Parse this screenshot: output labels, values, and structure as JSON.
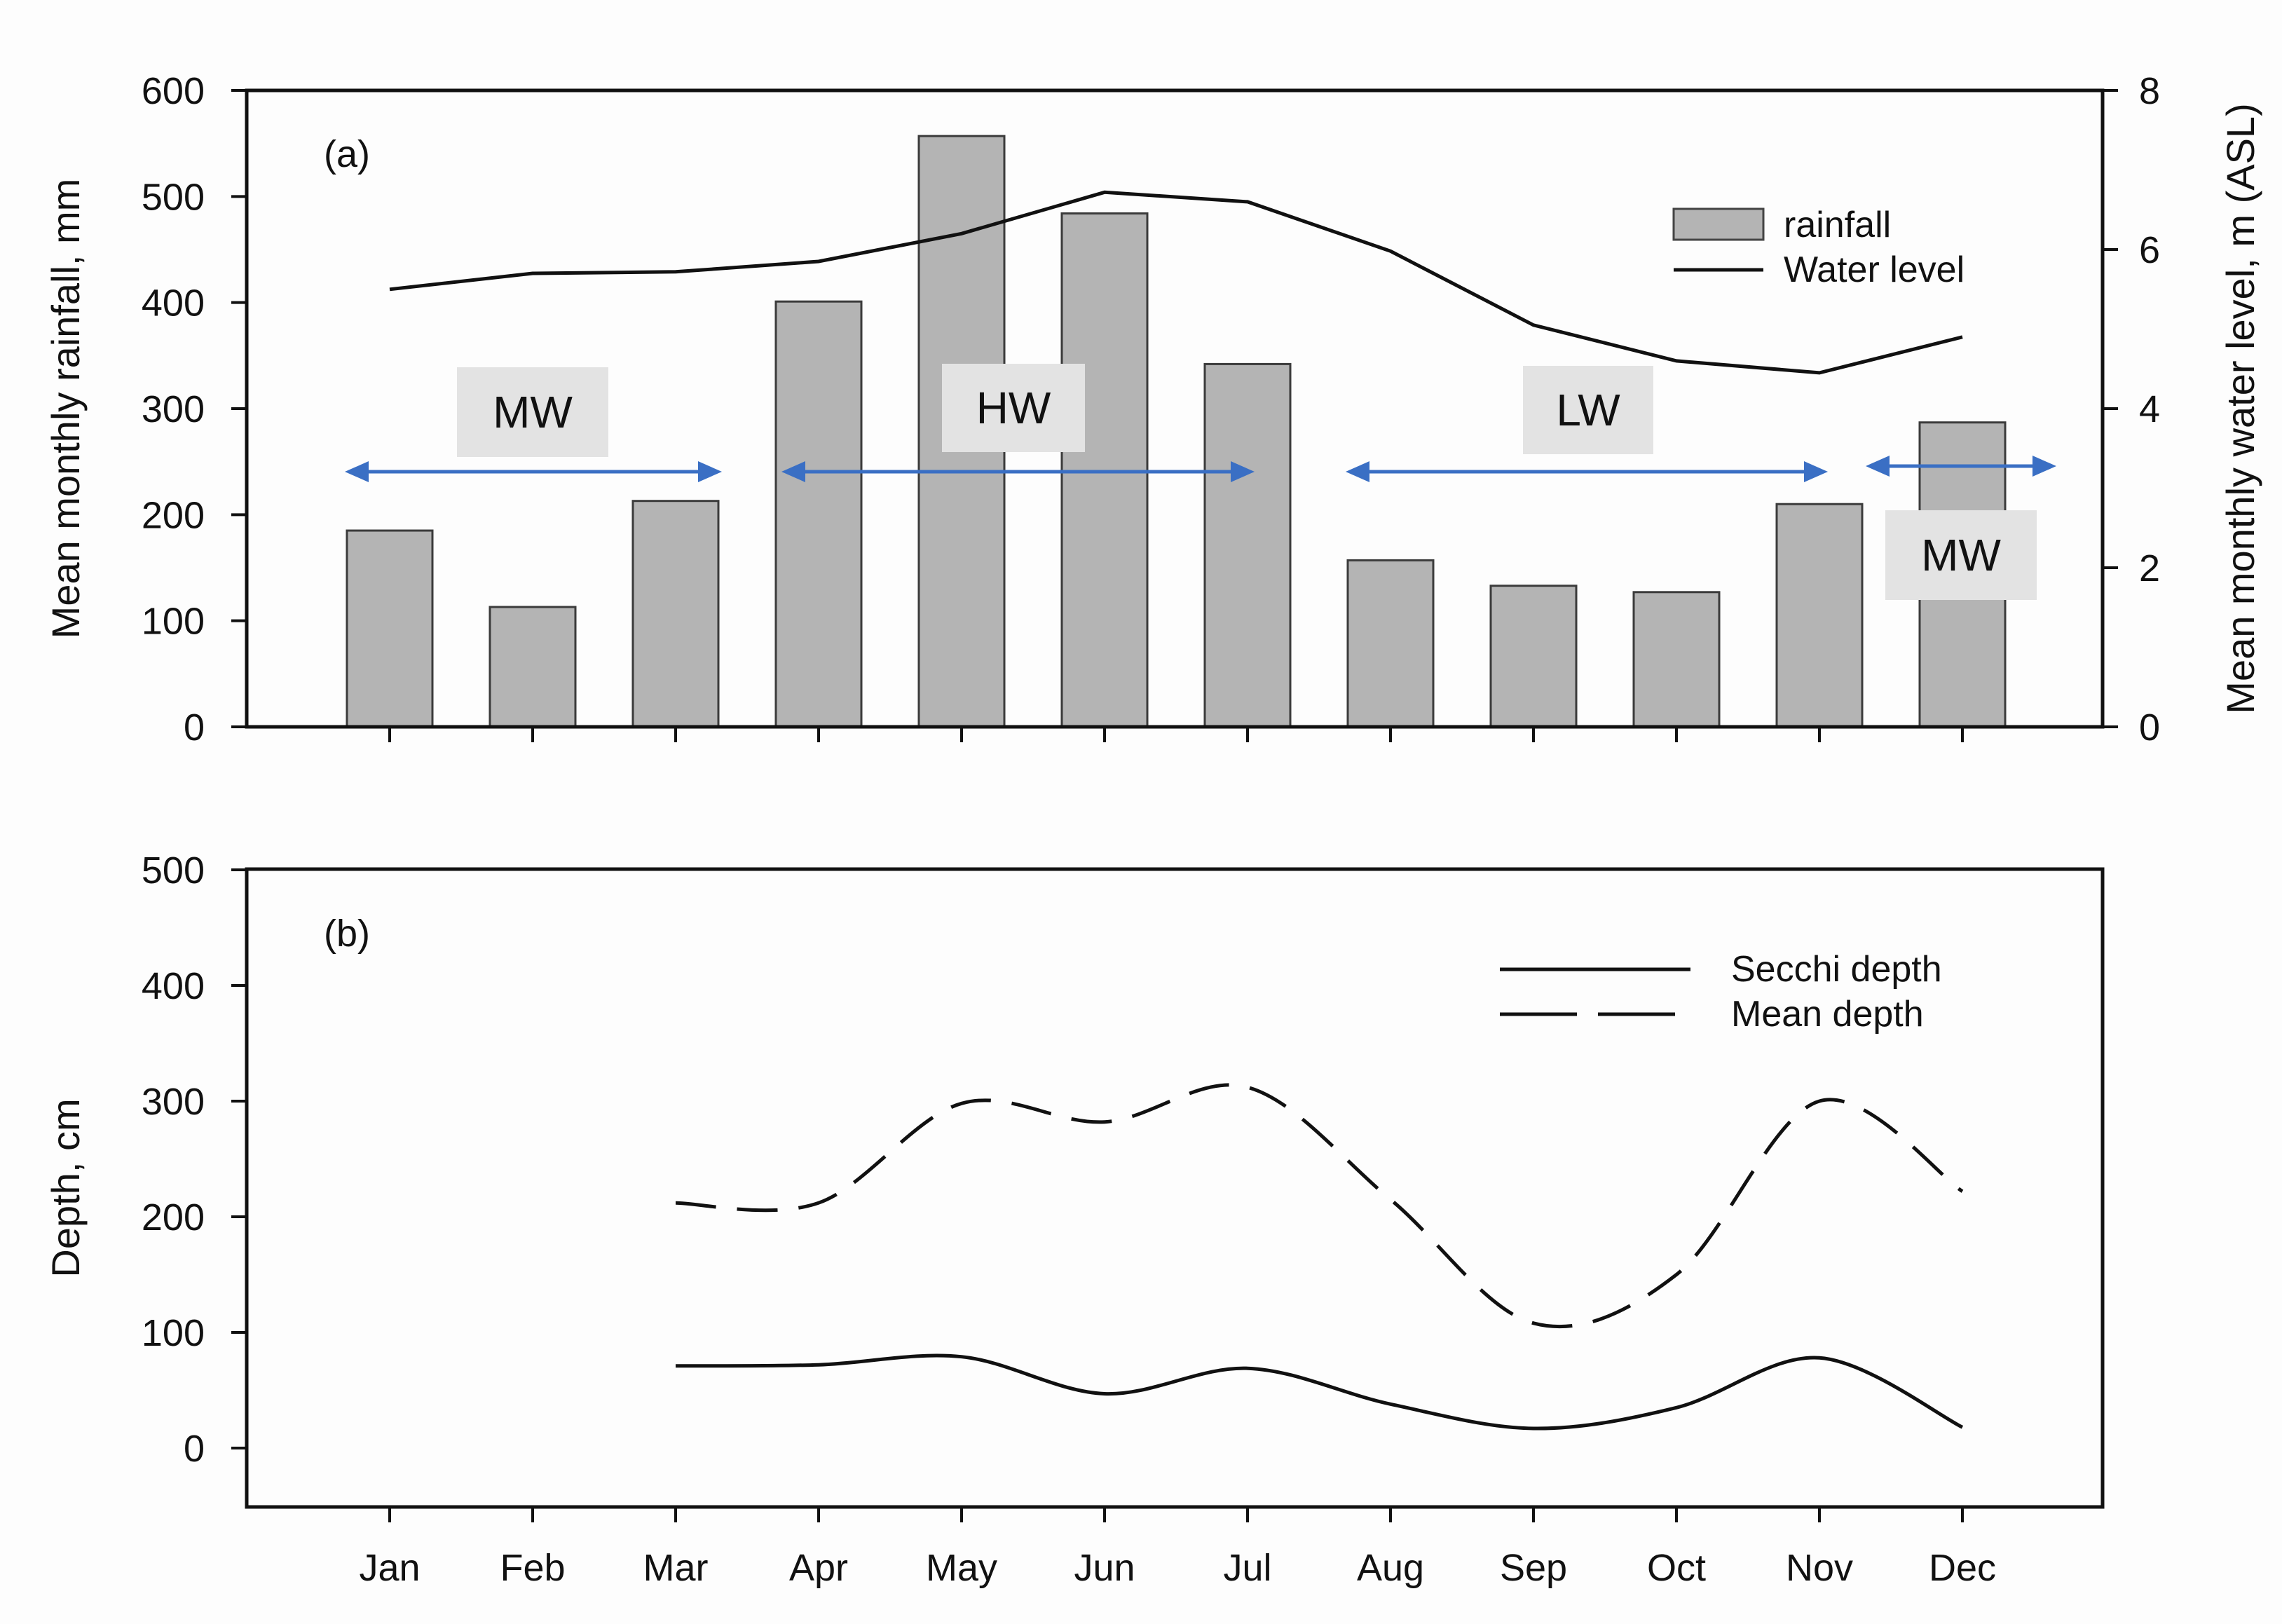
{
  "months": [
    "Jan",
    "Feb",
    "Mar",
    "Apr",
    "May",
    "Jun",
    "Jul",
    "Aug",
    "Sep",
    "Oct",
    "Nov",
    "Dec"
  ],
  "colors": {
    "bar": "#b4b4b4",
    "arrow": "#3a6fc4",
    "label_box": "#e3e3e3",
    "line": "#111111"
  },
  "chart_data": [
    {
      "type": "bar",
      "panel_label": "(a)",
      "ylabel": "Mean monthly rainfall, mm",
      "ylabel_right": "Mean monthly water level, m (ASL)",
      "ylim": [
        0,
        600
      ],
      "yticks": [
        "0",
        "100",
        "200",
        "300",
        "400",
        "500",
        "600"
      ],
      "ylim_right": [
        0,
        8
      ],
      "yticks_right": [
        "0",
        "2",
        "4",
        "6",
        "8"
      ],
      "categories": [
        "Jan",
        "Feb",
        "Mar",
        "Apr",
        "May",
        "Jun",
        "Jul",
        "Aug",
        "Sep",
        "Oct",
        "Nov",
        "Dec"
      ],
      "series": [
        {
          "name": "rainfall",
          "type": "bar",
          "axis": "left",
          "values": [
            185,
            113,
            213,
            401,
            557,
            484,
            342,
            157,
            133,
            127,
            210,
            287
          ]
        },
        {
          "name": "Water level",
          "type": "line",
          "axis": "right",
          "values": [
            5.5,
            5.7,
            5.72,
            5.85,
            6.2,
            6.72,
            6.6,
            5.98,
            5.05,
            4.6,
            4.45,
            4.9
          ]
        }
      ],
      "legend": {
        "placement": "top-right",
        "entries": [
          "rainfall",
          "Water level"
        ]
      },
      "annotations": [
        {
          "text": "MW",
          "from": "Jan",
          "to": "Mar"
        },
        {
          "text": "HW",
          "from": "Apr",
          "to": "Jul"
        },
        {
          "text": "LW",
          "from": "Aug",
          "to": "Nov"
        },
        {
          "text": "MW",
          "from": "Dec",
          "to": "Dec"
        }
      ]
    },
    {
      "type": "line",
      "panel_label": "(b)",
      "ylabel": "Depth, cm",
      "ylim": [
        -50,
        500
      ],
      "yticks": [
        "0",
        "100",
        "200",
        "300",
        "400",
        "500"
      ],
      "categories": [
        "Jan",
        "Feb",
        "Mar",
        "Apr",
        "May",
        "Jun",
        "Jul",
        "Aug",
        "Sep",
        "Oct",
        "Nov",
        "Dec"
      ],
      "series": [
        {
          "name": "Secchi depth",
          "style": "solid",
          "x": [
            "Mar",
            "Apr",
            "May",
            "Jun",
            "Jul",
            "Aug",
            "Sep",
            "Oct",
            "Nov",
            "Dec"
          ],
          "values": [
            71,
            72,
            79,
            47,
            69,
            38,
            17,
            35,
            78,
            18
          ]
        },
        {
          "name": "Mean depth",
          "style": "dashed",
          "x": [
            "Mar",
            "Apr",
            "May",
            "Jun",
            "Jul",
            "Aug",
            "Sep",
            "Oct",
            "Nov",
            "Dec"
          ],
          "values": [
            212,
            212,
            298,
            282,
            312,
            215,
            108,
            150,
            300,
            222
          ]
        }
      ],
      "legend": {
        "placement": "top-right",
        "entries": [
          "Secchi depth",
          "Mean depth"
        ]
      }
    }
  ]
}
